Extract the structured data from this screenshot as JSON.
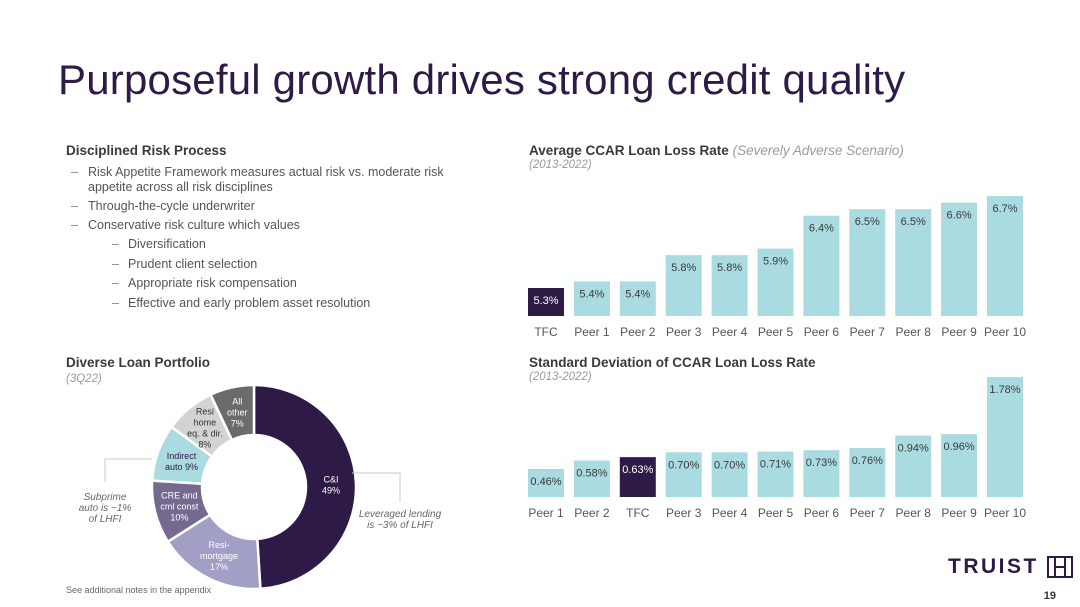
{
  "title": "Purposeful growth drives strong credit quality",
  "risk": {
    "heading": "Disciplined Risk Process",
    "bullets": [
      "Risk Appetite Framework measures actual risk vs. moderate risk appetite across all risk disciplines",
      "Through-the-cycle underwriter",
      "Conservative risk culture which values"
    ],
    "sub_bullets": [
      "Diversification",
      "Prudent client selection",
      "Appropriate risk compensation",
      "Effective and early problem asset resolution"
    ]
  },
  "portfolio": {
    "heading": "Diverse Loan Portfolio",
    "period": "(3Q22)",
    "annotations": {
      "subprime": [
        "Subprime",
        "auto is ~1%",
        "of LHFI"
      ],
      "leveraged": [
        "Leveraged lending",
        "is ~3% of LHFI"
      ]
    }
  },
  "ccar": {
    "heading": "Average CCAR Loan Loss Rate",
    "heading_note": "(Severely Adverse Scenario)",
    "period": "(2013-2022)"
  },
  "stdev": {
    "heading": "Standard Deviation of CCAR Loan Loss Rate",
    "period": "(2013-2022)"
  },
  "colors": {
    "dark": "#2e1a47",
    "light_bar": "#a9dbe1",
    "donut_cni": "#2e1a47",
    "donut_resi_mortgage": "#a29fc6",
    "donut_cre": "#75698f",
    "donut_indirect_auto": "#a9dbe1",
    "donut_resi_home_eq": "#d3d3d3",
    "donut_all_other": "#6b6b6b"
  },
  "chart_data": [
    {
      "type": "bar",
      "categories": [
        "TFC",
        "Peer 1",
        "Peer 2",
        "Peer 3",
        "Peer 4",
        "Peer 5",
        "Peer 6",
        "Peer 7",
        "Peer 8",
        "Peer 9",
        "Peer 10"
      ],
      "values": [
        5.3,
        5.4,
        5.4,
        5.8,
        5.8,
        5.9,
        6.4,
        6.5,
        6.5,
        6.6,
        6.7
      ],
      "labels": [
        "5.3%",
        "5.4%",
        "5.4%",
        "5.8%",
        "5.8%",
        "5.9%",
        "6.4%",
        "6.5%",
        "6.5%",
        "6.6%",
        "6.7%"
      ],
      "highlight": "TFC",
      "title": "Average CCAR Loan Loss Rate (Severely Adverse Scenario)"
    },
    {
      "type": "bar",
      "categories": [
        "Peer 1",
        "Peer 2",
        "TFC",
        "Peer 3",
        "Peer 4",
        "Peer 5",
        "Peer 6",
        "Peer 7",
        "Peer 8",
        "Peer 9",
        "Peer 10"
      ],
      "values": [
        0.46,
        0.58,
        0.63,
        0.7,
        0.7,
        0.71,
        0.73,
        0.76,
        0.94,
        0.96,
        1.78
      ],
      "labels": [
        "0.46%",
        "0.58%",
        "0.63%",
        "0.70%",
        "0.70%",
        "0.71%",
        "0.73%",
        "0.76%",
        "0.94%",
        "0.96%",
        "1.78%"
      ],
      "highlight": "TFC",
      "title": "Standard Deviation of CCAR Loan Loss Rate"
    },
    {
      "type": "pie",
      "donut": true,
      "slices": [
        {
          "lines": [
            "C&I",
            "49%"
          ],
          "value": 49,
          "color_key": "donut_cni",
          "text_color": "#ffffff"
        },
        {
          "lines": [
            "Resi-",
            "mortgage",
            "17%"
          ],
          "value": 17,
          "color_key": "donut_resi_mortgage",
          "text_color": "#ffffff"
        },
        {
          "lines": [
            "CRE and",
            "cml const",
            "10%"
          ],
          "value": 10,
          "color_key": "donut_cre",
          "text_color": "#ffffff"
        },
        {
          "lines": [
            "Indirect",
            "auto 9%"
          ],
          "value": 9,
          "color_key": "donut_indirect_auto",
          "text_color": "#2e1a47"
        },
        {
          "lines": [
            "Resi",
            "home",
            "eq. & dir.",
            "8%"
          ],
          "value": 8,
          "color_key": "donut_resi_home_eq",
          "text_color": "#333333"
        },
        {
          "lines": [
            "All",
            "other",
            "7%"
          ],
          "value": 7,
          "color_key": "donut_all_other",
          "text_color": "#ffffff"
        }
      ]
    }
  ],
  "footnote": "See additional notes in the appendix",
  "page_number": "19",
  "logo": "TRUIST"
}
